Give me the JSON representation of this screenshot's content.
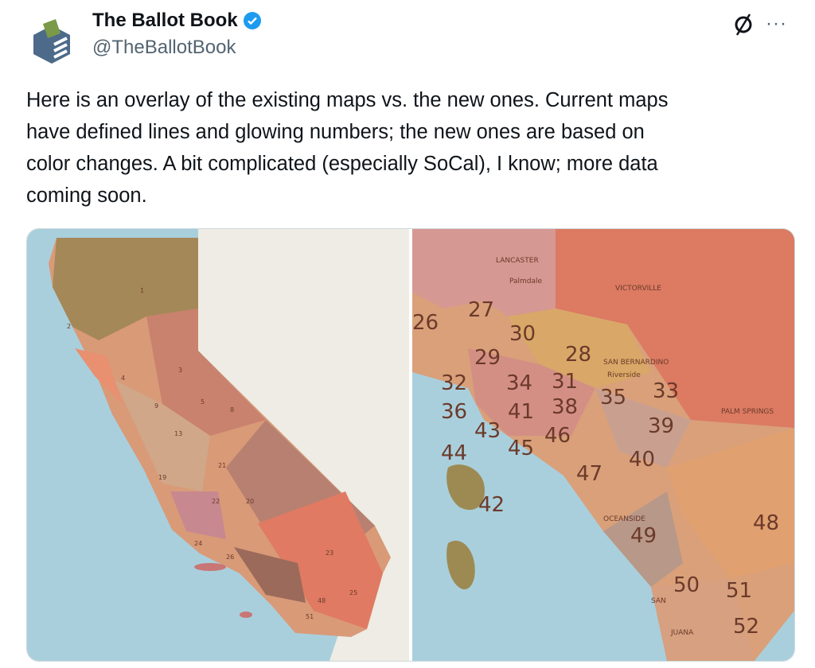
{
  "author": {
    "name": "The Ballot Book",
    "handle": "@TheBallotBook",
    "verified": true,
    "verified_color": "#1d9bf0"
  },
  "actions": {
    "grok_icon": "grok-slash-icon",
    "more_label": "···"
  },
  "tweet": {
    "lines": [
      "Here is an overlay of the existing maps vs. the new ones. Current maps",
      "have defined lines and glowing numbers; the new ones are based on",
      "color changes. A bit complicated (especially SoCal), I know; more data",
      "coming soon."
    ]
  },
  "media": {
    "left_map": {
      "labels": [
        "1",
        "2",
        "3",
        "4",
        "5",
        "8",
        "9",
        "13",
        "19",
        "20",
        "21",
        "22",
        "23",
        "24",
        "25",
        "26",
        "48",
        "51"
      ]
    },
    "right_map": {
      "places": [
        "LANCASTER",
        "Palmdale",
        "VICTORVILLE",
        "SAN BERNARDINO",
        "Riverside",
        "PALM SPRINGS",
        "OCEANSIDE",
        "SAN",
        "JUANA"
      ],
      "districts": [
        "26",
        "27",
        "29",
        "30",
        "28",
        "32",
        "34",
        "31",
        "38",
        "35",
        "33",
        "39",
        "36",
        "43",
        "44",
        "41",
        "45",
        "46",
        "40",
        "47",
        "42",
        "49",
        "48",
        "50",
        "51",
        "52"
      ]
    }
  }
}
